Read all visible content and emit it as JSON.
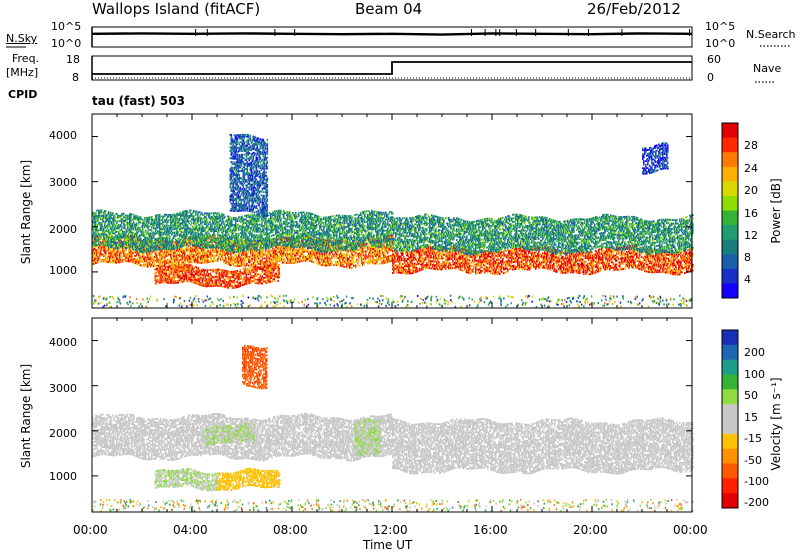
{
  "header": {
    "station": "Wallops Island (fitACF)",
    "beam": "Beam 04",
    "date": "26/Feb/2012"
  },
  "noise_panel": {
    "left_label": "N.Sky",
    "right_label": "N.Search",
    "ticks": [
      "10^5",
      "10^0"
    ],
    "right_ticks": [
      "10^5",
      "10^0"
    ]
  },
  "freq_panel": {
    "left_label_1": "Freq.",
    "left_label_2": "[MHz]",
    "cpid_label": "CPID",
    "right_label": "Nave",
    "ticks": [
      "18",
      "8"
    ],
    "right_ticks": [
      "60",
      "0"
    ]
  },
  "cpid_text": "tau (fast) 503",
  "power_panel": {
    "ylabel": "Slant Range [km]",
    "yticks": [
      "4000",
      "3000",
      "2000",
      "1000"
    ],
    "colorbar_label": "Power [dB]",
    "colorbar_ticks": [
      "28",
      "24",
      "20",
      "16",
      "12",
      "8",
      "4"
    ],
    "colorbar_colors": [
      "#e00000",
      "#ff2a00",
      "#ff7a00",
      "#ffb000",
      "#d8d800",
      "#8edc00",
      "#36b236",
      "#1e9e6e",
      "#1a7d7d",
      "#1b5fa8",
      "#1830c8",
      "#1400ff"
    ]
  },
  "velocity_panel": {
    "ylabel": "Slant Range [km]",
    "yticks": [
      "4000",
      "3000",
      "2000",
      "1000"
    ],
    "colorbar_label": "Velocity [m s⁻¹]",
    "colorbar_ticks": [
      "200",
      "100",
      "50",
      "15",
      "-15",
      "-50",
      "-100",
      "-200"
    ],
    "colorbar_colors": [
      "#1a2fb8",
      "#1f66b0",
      "#1e9e8a",
      "#36b236",
      "#8edc40",
      "#c8c8c8",
      "#c8c8c8",
      "#ffc000",
      "#ff9000",
      "#ff5a00",
      "#ff2000",
      "#e00000"
    ]
  },
  "xaxis": {
    "label": "Time UT",
    "ticks": [
      "00:00",
      "04:00",
      "08:00",
      "12:00",
      "16:00",
      "20:00",
      "00:00"
    ]
  },
  "chart_data": [
    {
      "type": "line",
      "panel": "noise",
      "x_hours": [
        0,
        2,
        4,
        6,
        8,
        10,
        12,
        14,
        16,
        18,
        20,
        22,
        24
      ],
      "y_log10": [
        3.3,
        3.4,
        3.3,
        3.4,
        3.3,
        3.2,
        3.3,
        3.1,
        3.4,
        3.3,
        3.2,
        3.4,
        3.3
      ],
      "ylim": [
        0,
        5
      ]
    },
    {
      "type": "line",
      "panel": "frequency",
      "x_hours": [
        0,
        12,
        12,
        24
      ],
      "y_mhz": [
        10.5,
        10.5,
        15.5,
        15.5
      ],
      "ylim": [
        8,
        18
      ]
    },
    {
      "type": "heatmap",
      "panel": "power",
      "unit": "dB",
      "xlim_hours": [
        0,
        24
      ],
      "ylim_km": [
        200,
        4500
      ],
      "regions": [
        {
          "t": [
            0,
            12
          ],
          "r": [
            1150,
            1750
          ],
          "v": 24
        },
        {
          "t": [
            0,
            12
          ],
          "r": [
            1500,
            2300
          ],
          "v": 12
        },
        {
          "t": [
            2.5,
            7.5
          ],
          "r": [
            700,
            1100
          ],
          "v": 26
        },
        {
          "t": [
            12,
            24
          ],
          "r": [
            1000,
            1500
          ],
          "v": 26
        },
        {
          "t": [
            12,
            24
          ],
          "r": [
            1450,
            2200
          ],
          "v": 12
        },
        {
          "t": [
            5.5,
            7
          ],
          "r": [
            2300,
            4000
          ],
          "v": 8
        },
        {
          "t": [
            22,
            23
          ],
          "r": [
            3200,
            3800
          ],
          "v": 6
        }
      ]
    },
    {
      "type": "heatmap",
      "panel": "velocity",
      "unit": "m s-1",
      "xlim_hours": [
        0,
        24
      ],
      "ylim_km": [
        200,
        4500
      ],
      "regions": [
        {
          "t": [
            0,
            12
          ],
          "r": [
            1400,
            2300
          ],
          "v": 0
        },
        {
          "t": [
            12,
            24
          ],
          "r": [
            1100,
            2200
          ],
          "v": 0
        },
        {
          "t": [
            2.5,
            5
          ],
          "r": [
            700,
            1100
          ],
          "v": 40
        },
        {
          "t": [
            5,
            7.5
          ],
          "r": [
            700,
            1100
          ],
          "v": -60
        },
        {
          "t": [
            4.5,
            6.5
          ],
          "r": [
            1700,
            2100
          ],
          "v": 40
        },
        {
          "t": [
            10.5,
            11.5
          ],
          "r": [
            1500,
            2300
          ],
          "v": 40
        },
        {
          "t": [
            6,
            7
          ],
          "r": [
            3000,
            3900
          ],
          "v": -150
        }
      ]
    }
  ]
}
